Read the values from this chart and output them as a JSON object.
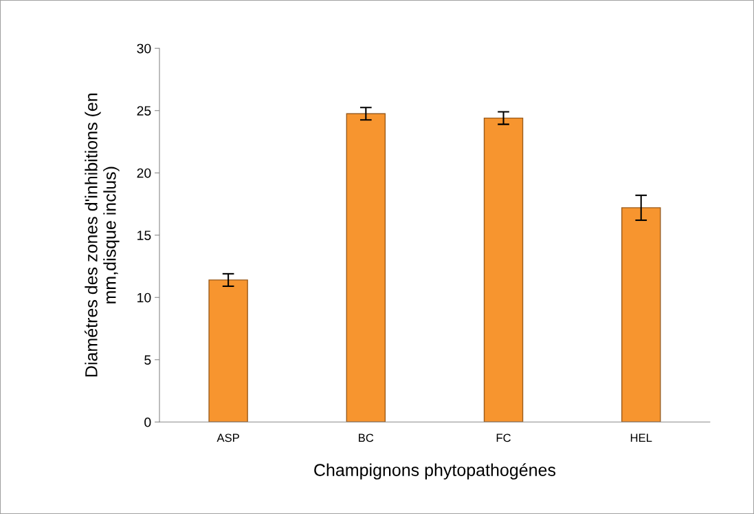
{
  "chart_data": {
    "type": "bar",
    "xlabel": "Champignons phytopathogénes",
    "ylabel": "Diamétres des zones d'inhibitions (en\nmm,disque inclus)",
    "categories": [
      "ASP",
      "BC",
      "FC",
      "HEL"
    ],
    "values": [
      11.4,
      24.75,
      24.4,
      17.2
    ],
    "errors": [
      0.5,
      0.5,
      0.5,
      1.0
    ],
    "color": "#f7952f",
    "ylim": [
      0,
      30
    ],
    "yticks": [
      0,
      5,
      10,
      15,
      20,
      25,
      30
    ],
    "grid": false
  }
}
